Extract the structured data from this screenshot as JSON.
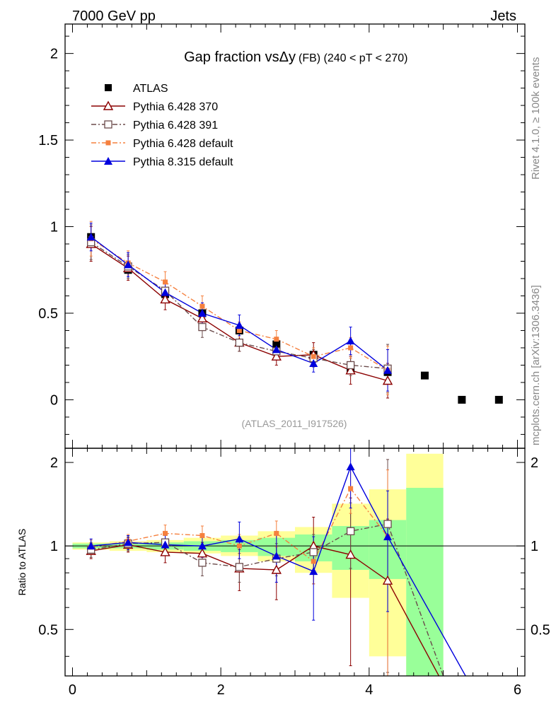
{
  "header": {
    "left": "7000 GeV pp",
    "right": "Jets",
    "side_top": "Rivet 4.1.0, ≥ 100k events",
    "side_bottom": "mcplots.cern.ch [arXiv:1306.3436]"
  },
  "chart_data": {
    "type": "scatter",
    "title_main": "Gap fraction vsΔy",
    "title_sub": "(FB) (240 < pT < 270)",
    "analysis_label": "(ATLAS_2011_I917526)",
    "ylabel_ratio": "Ratio to ATLAS",
    "xlim": [
      -0.1,
      6.1
    ],
    "ylim_main": [
      -0.28,
      2.17
    ],
    "ylim_ratio": [
      0.34,
      2.25
    ],
    "x_ticks": [
      "0",
      "2",
      "4",
      "6"
    ],
    "y_ticks_main": [
      "0",
      "0.5",
      "1",
      "1.5",
      "2"
    ],
    "y_ticks_ratio": [
      "0.5",
      "1",
      "2"
    ],
    "x": [
      0.25,
      0.75,
      1.25,
      1.75,
      2.25,
      2.75,
      3.25,
      3.75,
      4.25,
      4.75,
      5.25,
      5.75
    ],
    "series": [
      {
        "name": "ATLAS",
        "color": "#000000",
        "marker": "square-filled",
        "line": "none",
        "values": [
          0.94,
          0.75,
          0.61,
          0.5,
          0.4,
          0.32,
          0.26,
          0.18,
          0.16,
          0.14,
          0.0,
          0.0
        ]
      },
      {
        "name": "Pythia 6.428 370",
        "color": "#8b0000",
        "marker": "triangle-open",
        "line": "solid",
        "values": [
          0.9,
          0.76,
          0.58,
          0.47,
          0.33,
          0.25,
          0.26,
          0.17,
          0.11
        ],
        "err": [
          0.1,
          0.07,
          0.06,
          0.05,
          0.05,
          0.05,
          0.07,
          0.08,
          0.1
        ],
        "ratio": [
          0.96,
          1.01,
          0.95,
          0.94,
          0.83,
          0.82,
          1.0,
          0.93,
          0.75
        ],
        "ratio_err": [
          0.06,
          0.06,
          0.08,
          0.09,
          0.14,
          0.18,
          0.27,
          0.56,
          0.5
        ]
      },
      {
        "name": "Pythia 6.428 391",
        "color": "#6b4b4b",
        "marker": "square-open",
        "line": "dashdot",
        "values": [
          0.91,
          0.77,
          0.63,
          0.42,
          0.33,
          0.28,
          0.24,
          0.2,
          0.18
        ],
        "err": [
          0.1,
          0.07,
          0.06,
          0.06,
          0.05,
          0.05,
          0.05,
          0.06,
          0.14
        ],
        "ratio": [
          0.97,
          1.02,
          1.03,
          0.87,
          0.84,
          0.9,
          0.95,
          1.13,
          1.2
        ],
        "ratio_err": [
          0.06,
          0.06,
          0.08,
          0.09,
          0.1,
          0.12,
          0.15,
          0.3,
          0.85
        ]
      },
      {
        "name": "Pythia 6.428 default",
        "color": "#f5803e",
        "marker": "square-filled",
        "line": "dashdot",
        "values": [
          0.93,
          0.79,
          0.68,
          0.54,
          0.4,
          0.35,
          0.25,
          0.3,
          0.17
        ],
        "err": [
          0.1,
          0.07,
          0.06,
          0.06,
          0.05,
          0.05,
          0.05,
          0.06,
          0.14
        ],
        "ratio": [
          0.99,
          1.04,
          1.11,
          1.09,
          1.0,
          1.11,
          0.88,
          1.61,
          1.08
        ],
        "ratio_err": [
          0.06,
          0.06,
          0.08,
          0.09,
          0.1,
          0.12,
          0.15,
          0.3,
          0.8
        ]
      },
      {
        "name": "Pythia 8.315 default",
        "color": "#0000dd",
        "marker": "triangle-filled",
        "line": "solid",
        "values": [
          0.94,
          0.78,
          0.62,
          0.5,
          0.43,
          0.29,
          0.21,
          0.34,
          0.17
        ],
        "err": [
          0.08,
          0.07,
          0.06,
          0.06,
          0.06,
          0.06,
          0.05,
          0.08,
          0.12
        ],
        "ratio": [
          1.0,
          1.03,
          1.01,
          1.0,
          1.06,
          0.92,
          0.81,
          1.93,
          1.08
        ],
        "ratio_err": [
          0.06,
          0.06,
          0.08,
          0.09,
          0.16,
          0.18,
          0.27,
          0.56,
          0.5
        ]
      }
    ],
    "ratio_tail": [
      {
        "series": 1,
        "to_x": 5.05,
        "to_y": 0.3
      },
      {
        "series": 2,
        "to_x": 5.0,
        "to_y": 0.34
      },
      {
        "series": 4,
        "to_x": 5.3,
        "to_y": 0.34
      }
    ],
    "ratio_bands": {
      "yellow": [
        [
          0.0,
          0.5,
          0.97,
          1.03
        ],
        [
          0.5,
          1.0,
          0.96,
          1.04
        ],
        [
          1.0,
          1.5,
          0.95,
          1.05
        ],
        [
          1.5,
          2.0,
          0.94,
          1.07
        ],
        [
          2.0,
          2.5,
          0.92,
          1.09
        ],
        [
          2.5,
          3.0,
          0.88,
          1.13
        ],
        [
          3.0,
          3.5,
          0.8,
          1.17
        ],
        [
          3.5,
          4.0,
          0.65,
          1.42
        ],
        [
          4.0,
          4.5,
          0.4,
          1.6
        ],
        [
          4.5,
          5.0,
          0.3,
          2.15
        ]
      ],
      "green": [
        [
          0.0,
          0.5,
          0.98,
          1.02
        ],
        [
          0.5,
          1.0,
          0.98,
          1.02
        ],
        [
          1.0,
          1.5,
          0.97,
          1.03
        ],
        [
          1.5,
          2.0,
          0.96,
          1.04
        ],
        [
          2.0,
          2.5,
          0.95,
          1.05
        ],
        [
          2.5,
          3.0,
          0.92,
          1.07
        ],
        [
          3.0,
          3.5,
          0.88,
          1.1
        ],
        [
          3.5,
          4.0,
          0.82,
          1.18
        ],
        [
          4.0,
          4.5,
          0.76,
          1.24
        ],
        [
          4.5,
          5.0,
          0.3,
          1.62
        ]
      ]
    }
  }
}
